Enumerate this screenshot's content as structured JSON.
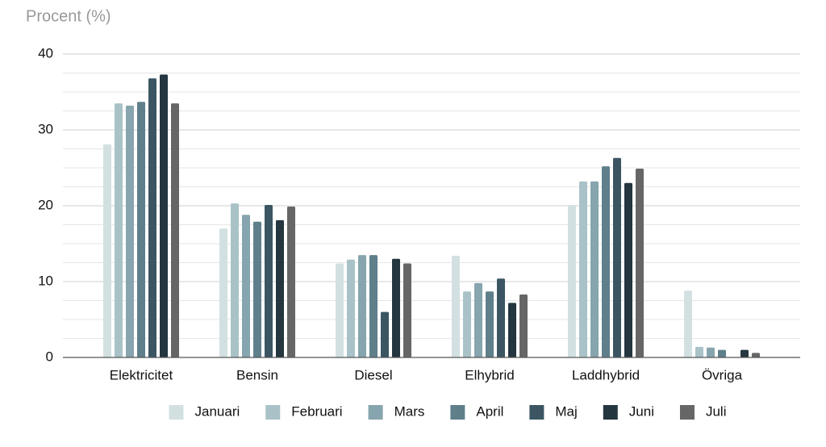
{
  "chart_data": {
    "type": "bar",
    "y_axis_label": "Procent (%)",
    "categories": [
      "Elektricitet",
      "Bensin",
      "Diesel",
      "Elhybrid",
      "Laddhybrid",
      "Övriga"
    ],
    "series": [
      {
        "name": "Januari",
        "color": "#d3e0e2",
        "values": [
          28.1,
          17.0,
          12.4,
          13.4,
          20.1,
          8.8
        ]
      },
      {
        "name": "Februari",
        "color": "#a9c2c8",
        "values": [
          33.5,
          20.3,
          12.9,
          8.7,
          23.2,
          1.4
        ]
      },
      {
        "name": "Mars",
        "color": "#87a5ae",
        "values": [
          33.2,
          18.8,
          13.5,
          9.8,
          23.2,
          1.3
        ]
      },
      {
        "name": "April",
        "color": "#5f7f8b",
        "values": [
          33.7,
          17.9,
          13.5,
          8.7,
          25.2,
          1.0
        ]
      },
      {
        "name": "Maj",
        "color": "#3b5662",
        "values": [
          36.8,
          20.1,
          6.0,
          10.4,
          26.3,
          0
        ]
      },
      {
        "name": "Juni",
        "color": "#24363f",
        "values": [
          37.3,
          18.1,
          13.0,
          7.2,
          23.0,
          1.0
        ]
      },
      {
        "name": "Juli",
        "color": "#666666",
        "values": [
          33.5,
          19.9,
          12.4,
          8.3,
          24.9,
          0.6
        ]
      }
    ],
    "ylim": [
      0,
      40
    ],
    "yticks": [
      0,
      10,
      20,
      30,
      40
    ],
    "minor_yticks": [
      2.5,
      5,
      7.5,
      12.5,
      15,
      17.5,
      22.5,
      25,
      27.5,
      32.5,
      35,
      37.5
    ],
    "grid": true,
    "legend": "bottom"
  }
}
